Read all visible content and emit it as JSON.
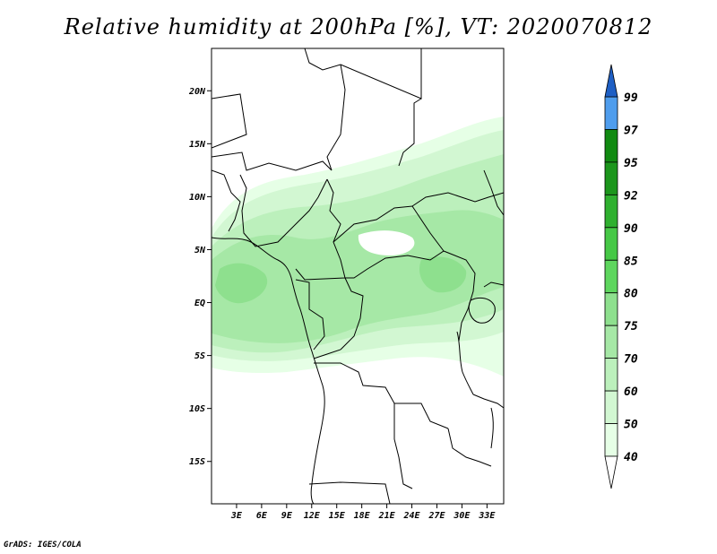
{
  "title": "Relative humidity at 200hPa [%], VT: 2020070812",
  "footer": "GrADS: IGES/COLA",
  "map": {
    "lon_range": [
      0,
      35
    ],
    "lat_range": [
      -19,
      24
    ],
    "lat_ticks": [
      {
        "value": 20,
        "label": "20N"
      },
      {
        "value": 15,
        "label": "15N"
      },
      {
        "value": 10,
        "label": "10N"
      },
      {
        "value": 5,
        "label": "5N"
      },
      {
        "value": 0,
        "label": "EQ"
      },
      {
        "value": -5,
        "label": "5S"
      },
      {
        "value": -10,
        "label": "10S"
      },
      {
        "value": -15,
        "label": "15S"
      }
    ],
    "lon_ticks": [
      {
        "value": 3,
        "label": "3E"
      },
      {
        "value": 6,
        "label": "6E"
      },
      {
        "value": 9,
        "label": "9E"
      },
      {
        "value": 12,
        "label": "12E"
      },
      {
        "value": 15,
        "label": "15E"
      },
      {
        "value": 18,
        "label": "18E"
      },
      {
        "value": 21,
        "label": "21E"
      },
      {
        "value": 24,
        "label": "24E"
      },
      {
        "value": 27,
        "label": "27E"
      },
      {
        "value": 30,
        "label": "30E"
      },
      {
        "value": 33,
        "label": "33E"
      }
    ]
  },
  "colorbar": {
    "levels": [
      {
        "label": "40",
        "color": "#e6ffe6"
      },
      {
        "label": "50",
        "color": "#d2f7d2"
      },
      {
        "label": "60",
        "color": "#bcf0bc"
      },
      {
        "label": "70",
        "color": "#a6e8a6"
      },
      {
        "label": "75",
        "color": "#8ee08e"
      },
      {
        "label": "80",
        "color": "#5ed65e"
      },
      {
        "label": "85",
        "color": "#46c846"
      },
      {
        "label": "90",
        "color": "#2fb02f"
      },
      {
        "label": "92",
        "color": "#1c961c"
      },
      {
        "label": "95",
        "color": "#118a11"
      },
      {
        "label": "97",
        "color": "#4f9ded"
      },
      {
        "label": "99",
        "color": "#2a72d8"
      }
    ],
    "top_arrow_color": "#1e5fc4",
    "bottom_arrow_color": "#ffffff"
  }
}
